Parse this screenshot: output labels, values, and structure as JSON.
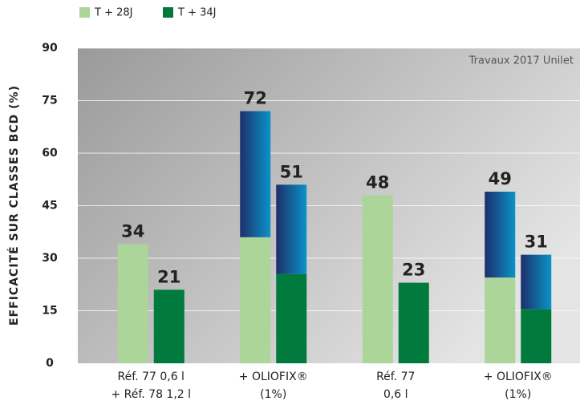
{
  "chart_data": {
    "type": "bar",
    "ylabel": "EFFICACITÉ SUR CLASSES BCD (%)",
    "annotation": "Travaux 2017 Unilet",
    "categories": [
      [
        "Réf. 77 0,6 l",
        "+ Réf. 78 1,2 l"
      ],
      [
        "+ OLIOFIX®",
        "(1%)"
      ],
      [
        "Réf. 77",
        "0,6 l"
      ],
      [
        "+ OLIOFIX®",
        "(1%)"
      ]
    ],
    "series": [
      {
        "name": "T + 28J",
        "color": "#acd59a",
        "values": [
          34,
          36,
          48,
          24.5
        ],
        "boost": [
          null,
          36,
          null,
          24.5
        ],
        "totals": [
          34,
          72,
          48,
          49
        ]
      },
      {
        "name": "T + 34J",
        "color": "#007a3d",
        "values": [
          21,
          25.5,
          23,
          15.5
        ],
        "boost": [
          null,
          25.5,
          null,
          15.5
        ],
        "totals": [
          21,
          51,
          23,
          31
        ]
      }
    ],
    "boost_colors": [
      "#1d2f6b",
      "#0a93c8"
    ],
    "ylim": [
      0,
      90
    ],
    "yticks": [
      0,
      15,
      30,
      45,
      60,
      75,
      90
    ],
    "grid": true,
    "legend": "top"
  }
}
